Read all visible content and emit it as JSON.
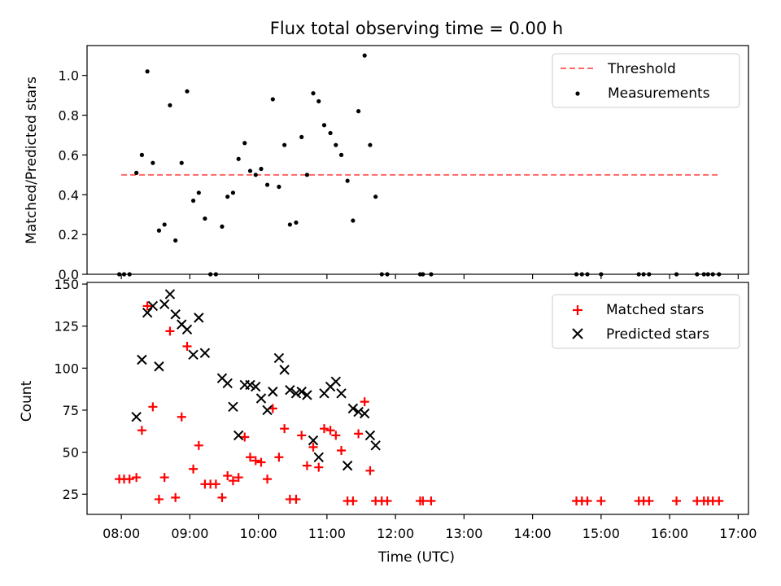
{
  "chart_data": [
    {
      "type": "scatter",
      "title": "Flux total observing time = 0.00 h",
      "xlabel": "",
      "ylabel": "Matched/Predicted stars",
      "ylim": [
        0,
        1.15
      ],
      "yticks": [
        "0.0",
        "0.2",
        "0.4",
        "0.6",
        "0.8",
        "1.0"
      ],
      "ytick_values": [
        0,
        0.2,
        0.4,
        0.6,
        0.8,
        1.0
      ],
      "legend": {
        "position": "top-right",
        "entries": [
          {
            "label": "Threshold",
            "style": "dashed-line",
            "color": "#ff6666"
          },
          {
            "label": "Measurements",
            "style": "dot",
            "color": "#000000"
          }
        ]
      },
      "threshold": {
        "y": 0.5,
        "x_from": 8.0,
        "x_to": 16.72
      },
      "measurements": {
        "x": [
          7.97,
          8.04,
          8.12,
          8.22,
          8.3,
          8.38,
          8.46,
          8.55,
          8.63,
          8.71,
          8.79,
          8.88,
          8.96,
          9.05,
          9.13,
          9.22,
          9.3,
          9.38,
          9.47,
          9.55,
          9.63,
          9.71,
          9.8,
          9.88,
          9.96,
          10.04,
          10.13,
          10.21,
          10.3,
          10.38,
          10.46,
          10.55,
          10.63,
          10.71,
          10.8,
          10.88,
          10.96,
          11.05,
          11.13,
          11.21,
          11.3,
          11.38,
          11.46,
          11.55,
          11.63,
          11.71,
          11.8,
          11.88,
          12.36,
          12.4,
          12.52,
          14.64,
          14.72,
          14.8,
          15.0,
          15.55,
          15.62,
          15.7,
          16.1,
          16.4,
          16.5,
          16.56,
          16.63,
          16.72
        ],
        "y": [
          0,
          0,
          0,
          0.51,
          0.6,
          1.02,
          0.56,
          0.22,
          0.25,
          0.85,
          0.17,
          0.56,
          0.92,
          0.37,
          0.41,
          0.28,
          0,
          0,
          0.24,
          0.39,
          0.41,
          0.58,
          0.66,
          0.52,
          0.5,
          0.53,
          0.45,
          0.88,
          0.44,
          0.65,
          0.25,
          0.26,
          0.69,
          0.5,
          0.91,
          0.87,
          0.75,
          0.71,
          0.65,
          0.6,
          0.47,
          0.27,
          0.82,
          1.1,
          0.65,
          0.39,
          0,
          0,
          0,
          0,
          0,
          0,
          0,
          0,
          0,
          0,
          0,
          0,
          0,
          0,
          0,
          0,
          0,
          0
        ]
      }
    },
    {
      "type": "scatter",
      "title": "",
      "xlabel": "Time (UTC)",
      "ylabel": "Count",
      "ylim": [
        13,
        151
      ],
      "xlim": [
        7.5,
        17.15
      ],
      "yticks": [
        "25",
        "50",
        "75",
        "100",
        "125",
        "150"
      ],
      "ytick_values": [
        25,
        50,
        75,
        100,
        125,
        150
      ],
      "xticks": [
        "08:00",
        "09:00",
        "10:00",
        "11:00",
        "12:00",
        "13:00",
        "14:00",
        "15:00",
        "16:00",
        "17:00"
      ],
      "xtick_values": [
        8,
        9,
        10,
        11,
        12,
        13,
        14,
        15,
        16,
        17
      ],
      "legend": {
        "position": "top-right",
        "entries": [
          {
            "label": "Matched stars",
            "style": "plus",
            "color": "#ff0000"
          },
          {
            "label": "Predicted stars",
            "style": "x",
            "color": "#000000"
          }
        ]
      },
      "series": [
        {
          "name": "Matched stars",
          "marker": "plus",
          "color": "#ff0000",
          "x": [
            7.97,
            8.04,
            8.12,
            8.22,
            8.3,
            8.38,
            8.46,
            8.55,
            8.63,
            8.71,
            8.79,
            8.88,
            8.96,
            9.05,
            9.13,
            9.22,
            9.3,
            9.38,
            9.47,
            9.55,
            9.63,
            9.71,
            9.8,
            9.88,
            9.96,
            10.04,
            10.13,
            10.21,
            10.3,
            10.38,
            10.46,
            10.55,
            10.63,
            10.71,
            10.8,
            10.88,
            10.96,
            11.05,
            11.13,
            11.21,
            11.3,
            11.38,
            11.46,
            11.55,
            11.63,
            11.71,
            11.8,
            11.88,
            12.36,
            12.4,
            12.52,
            14.64,
            14.72,
            14.8,
            15.0,
            15.55,
            15.62,
            15.7,
            16.1,
            16.4,
            16.5,
            16.56,
            16.63,
            16.72
          ],
          "y": [
            34,
            34,
            34,
            35,
            63,
            137,
            77,
            22,
            35,
            122,
            23,
            71,
            113,
            40,
            54,
            31,
            31,
            31,
            23,
            36,
            33,
            35,
            59,
            47,
            45,
            44,
            34,
            76,
            47,
            64,
            22,
            22,
            60,
            42,
            53,
            41,
            64,
            63,
            60,
            51,
            21,
            21,
            61,
            80,
            39,
            21,
            21,
            21,
            21,
            21,
            21,
            21,
            21,
            21,
            21,
            21,
            21,
            21,
            21,
            21,
            21,
            21,
            21,
            21
          ]
        },
        {
          "name": "Predicted stars",
          "marker": "x",
          "color": "#000000",
          "x": [
            8.22,
            8.3,
            8.38,
            8.46,
            8.55,
            8.63,
            8.71,
            8.79,
            8.88,
            8.96,
            9.05,
            9.13,
            9.22,
            9.47,
            9.55,
            9.63,
            9.71,
            9.8,
            9.88,
            9.96,
            10.04,
            10.13,
            10.21,
            10.3,
            10.38,
            10.46,
            10.55,
            10.63,
            10.71,
            10.8,
            10.88,
            10.96,
            11.05,
            11.13,
            11.21,
            11.3,
            11.38,
            11.46,
            11.55,
            11.63,
            11.71
          ],
          "y": [
            71,
            105,
            133,
            137,
            101,
            138,
            144,
            132,
            126,
            123,
            108,
            130,
            109,
            94,
            91,
            77,
            60,
            90,
            90,
            89,
            82,
            75,
            86,
            106,
            99,
            87,
            85,
            86,
            84,
            57,
            47,
            85,
            89,
            92,
            85,
            42,
            76,
            74,
            73,
            60,
            54
          ]
        }
      ]
    }
  ]
}
